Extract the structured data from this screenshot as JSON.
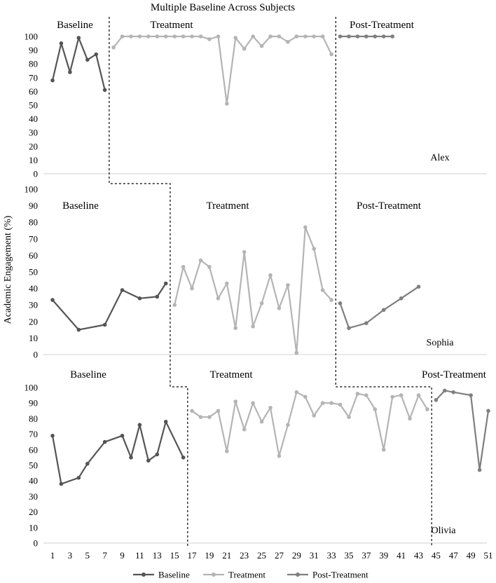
{
  "chart_data": {
    "type": "line",
    "title": "Multiple Baseline Across Subjects",
    "ylabel": "Academic Engagement (%)",
    "xlabel": "",
    "x_ticks": [
      1,
      3,
      5,
      7,
      9,
      11,
      13,
      15,
      17,
      19,
      21,
      23,
      25,
      27,
      29,
      31,
      33,
      35,
      37,
      39,
      41,
      43,
      45,
      47,
      49,
      51
    ],
    "y_ticks": [
      0,
      10,
      20,
      30,
      40,
      50,
      60,
      70,
      80,
      90,
      100
    ],
    "xlim": [
      1,
      51
    ],
    "ylim": [
      0,
      100
    ],
    "grid": false,
    "legend_position": "bottom",
    "legend": [
      "Baseline",
      "Treatment",
      "Post-Treatment"
    ],
    "colors": {
      "Baseline": "#555555",
      "Treatment": "#b4b4b4",
      "Post-Treatment": "#7f7f7f"
    },
    "panels": [
      {
        "subject": "Alex",
        "phase_labels": [
          "Baseline",
          "Treatment",
          "Post-Treatment"
        ],
        "phase_change_after": [
          7.5,
          33.5
        ],
        "series": [
          {
            "name": "Baseline",
            "points": [
              [
                1,
                68
              ],
              [
                2,
                95
              ],
              [
                3,
                74
              ],
              [
                4,
                99
              ],
              [
                5,
                83
              ],
              [
                6,
                87
              ],
              [
                7,
                61
              ]
            ]
          },
          {
            "name": "Treatment",
            "points": [
              [
                8,
                92
              ],
              [
                9,
                100
              ],
              [
                10,
                100
              ],
              [
                11,
                100
              ],
              [
                12,
                100
              ],
              [
                13,
                100
              ],
              [
                14,
                100
              ],
              [
                15,
                100
              ],
              [
                16,
                100
              ],
              [
                17,
                100
              ],
              [
                18,
                100
              ],
              [
                19,
                98
              ],
              [
                20,
                100
              ],
              [
                21,
                51
              ],
              [
                22,
                99
              ],
              [
                23,
                91
              ],
              [
                24,
                100
              ],
              [
                25,
                93
              ],
              [
                26,
                100
              ],
              [
                27,
                100
              ],
              [
                28,
                96
              ],
              [
                29,
                100
              ],
              [
                30,
                100
              ],
              [
                31,
                100
              ],
              [
                32,
                100
              ],
              [
                33,
                87
              ]
            ]
          },
          {
            "name": "Post-Treatment",
            "points": [
              [
                34,
                100
              ],
              [
                35,
                100
              ],
              [
                36,
                100
              ],
              [
                37,
                100
              ],
              [
                38,
                100
              ],
              [
                39,
                100
              ],
              [
                40,
                100
              ]
            ]
          }
        ]
      },
      {
        "subject": "Sophia",
        "phase_labels": [
          "Baseline",
          "Treatment",
          "Post-Treatment"
        ],
        "phase_change_after": [
          14.5,
          33.5
        ],
        "series": [
          {
            "name": "Baseline",
            "points": [
              [
                1,
                33
              ],
              [
                4,
                15
              ],
              [
                7,
                18
              ],
              [
                9,
                39
              ],
              [
                11,
                34
              ],
              [
                13,
                35
              ],
              [
                14,
                43
              ]
            ]
          },
          {
            "name": "Treatment",
            "points": [
              [
                15,
                30
              ],
              [
                16,
                53
              ],
              [
                17,
                40
              ],
              [
                18,
                57
              ],
              [
                19,
                53
              ],
              [
                20,
                34
              ],
              [
                21,
                43
              ],
              [
                22,
                16
              ],
              [
                23,
                62
              ],
              [
                24,
                17
              ],
              [
                25,
                31
              ],
              [
                26,
                48
              ],
              [
                27,
                28
              ],
              [
                28,
                42
              ],
              [
                29,
                1
              ],
              [
                30,
                77
              ],
              [
                31,
                64
              ],
              [
                32,
                39
              ],
              [
                33,
                33
              ]
            ]
          },
          {
            "name": "Post-Treatment",
            "points": [
              [
                34,
                31
              ],
              [
                35,
                16
              ],
              [
                37,
                19
              ],
              [
                39,
                27
              ],
              [
                41,
                34
              ],
              [
                43,
                41
              ]
            ]
          }
        ]
      },
      {
        "subject": "Olivia",
        "phase_labels": [
          "Baseline",
          "Treatment",
          "Post-Treatment"
        ],
        "phase_change_after": [
          16.5,
          44.5
        ],
        "series": [
          {
            "name": "Baseline",
            "points": [
              [
                1,
                69
              ],
              [
                2,
                38
              ],
              [
                4,
                42
              ],
              [
                5,
                51
              ],
              [
                7,
                65
              ],
              [
                9,
                69
              ],
              [
                10,
                55
              ],
              [
                11,
                76
              ],
              [
                12,
                53
              ],
              [
                13,
                57
              ],
              [
                14,
                78
              ],
              [
                16,
                55
              ]
            ]
          },
          {
            "name": "Treatment",
            "points": [
              [
                17,
                85
              ],
              [
                18,
                81
              ],
              [
                19,
                81
              ],
              [
                20,
                85
              ],
              [
                21,
                59
              ],
              [
                22,
                91
              ],
              [
                23,
                73
              ],
              [
                24,
                90
              ],
              [
                25,
                78
              ],
              [
                26,
                87
              ],
              [
                27,
                56
              ],
              [
                28,
                76
              ],
              [
                29,
                97
              ],
              [
                30,
                94
              ],
              [
                31,
                82
              ],
              [
                32,
                90
              ],
              [
                33,
                90
              ],
              [
                34,
                89
              ],
              [
                35,
                81
              ],
              [
                36,
                96
              ],
              [
                37,
                95
              ],
              [
                38,
                86
              ],
              [
                39,
                60
              ],
              [
                40,
                94
              ],
              [
                41,
                95
              ],
              [
                42,
                80
              ],
              [
                43,
                95
              ],
              [
                44,
                86
              ]
            ]
          },
          {
            "name": "Post-Treatment",
            "points": [
              [
                45,
                92
              ],
              [
                46,
                98
              ],
              [
                47,
                97
              ],
              [
                49,
                95
              ],
              [
                50,
                47
              ],
              [
                51,
                85
              ]
            ]
          }
        ]
      }
    ]
  }
}
